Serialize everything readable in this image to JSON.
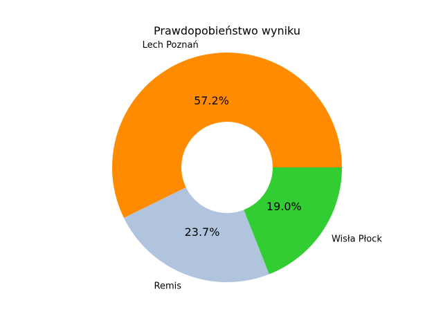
{
  "chart_data": {
    "type": "pie",
    "variant": "donut",
    "title": "Prawdopobieństwo wyniku",
    "categories": [
      "Lech Poznań",
      "Remis",
      "Wisła Płock"
    ],
    "values": [
      57.2,
      23.7,
      19.0
    ],
    "value_labels": [
      "57.2%",
      "23.7%",
      "19.0%"
    ],
    "colors": [
      "#ff8c00",
      "#b0c4de",
      "#32cd32"
    ],
    "start_angle_deg": 0,
    "direction": "counterclockwise"
  }
}
